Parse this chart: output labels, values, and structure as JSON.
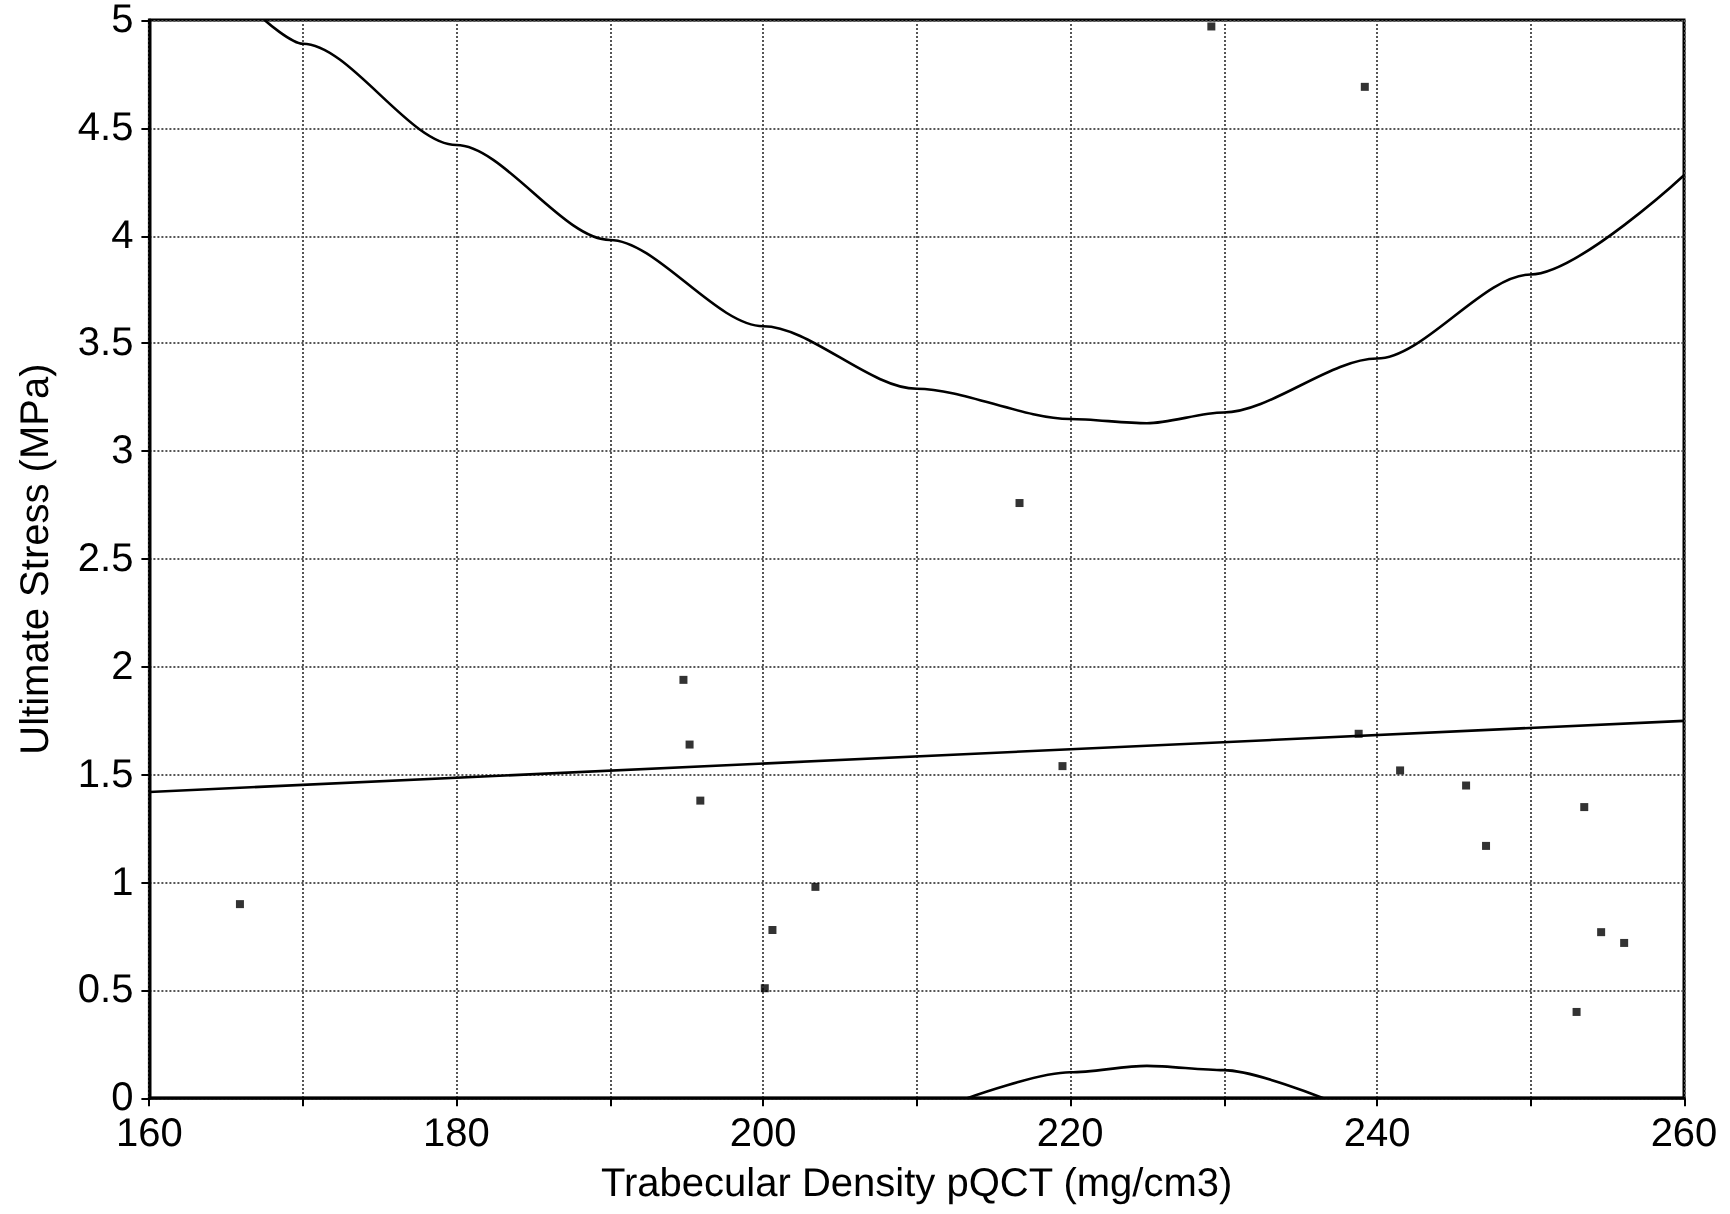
{
  "chart_data": {
    "type": "scatter",
    "xlabel": "Trabecular Density pQCT (mg/cm3)",
    "ylabel": "Ultimate Stress (MPa)",
    "xlim": [
      160,
      260
    ],
    "xticks": [
      160,
      {
        "value": 170,
        "label": null
      },
      180,
      {
        "value": 190,
        "label": null
      },
      200,
      {
        "value": 210,
        "label": null
      },
      220,
      {
        "value": 230,
        "label": null
      },
      240,
      {
        "value": 250,
        "label": null
      },
      260
    ],
    "ylim": [
      0,
      5
    ],
    "yticks": [
      0,
      0.5,
      1,
      1.5,
      2,
      2.5,
      3,
      3.5,
      4,
      4.5,
      5
    ],
    "grid": true,
    "marker": "square",
    "series": [
      {
        "color": "#000000",
        "x": [
          165.9,
          194.8,
          195.2,
          195.9,
          200.6,
          200.1,
          203.4,
          216.7,
          219.5,
          229.2,
          238.8,
          239.2,
          241.5,
          245.8,
          247.1,
          253.5,
          253.0,
          254.6,
          256.1
        ],
        "values": [
          0.9,
          1.94,
          1.64,
          1.38,
          0.78,
          0.51,
          0.98,
          2.76,
          1.54,
          4.97,
          1.69,
          4.69,
          1.52,
          1.45,
          1.17,
          1.35,
          0.4,
          0.77,
          0.72
        ]
      },
      {
        "type": "line",
        "color": "#000000",
        "marker": "none",
        "line_style": "solid",
        "x": [
          160,
          260
        ],
        "values": [
          1.42,
          1.75
        ]
      },
      {
        "type": "line",
        "color": "#000000",
        "marker": "none",
        "line_style": "solid",
        "x": [
          167.5,
          170,
          180,
          190,
          200,
          210,
          220,
          225,
          230,
          240,
          250,
          260
        ],
        "values": [
          5.0,
          4.89,
          4.42,
          3.98,
          3.58,
          3.29,
          3.15,
          3.13,
          3.18,
          3.43,
          3.82,
          4.28
        ]
      },
      {
        "type": "line",
        "color": "#000000",
        "marker": "none",
        "line_style": "solid",
        "x": [
          213.3,
          220,
          225,
          230,
          236.5
        ],
        "values": [
          0,
          0.12,
          0.15,
          0.13,
          0
        ]
      }
    ]
  }
}
